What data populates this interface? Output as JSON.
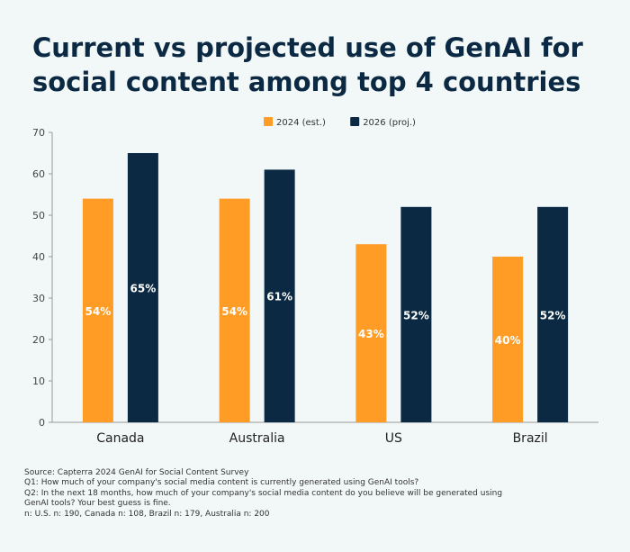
{
  "title": "Current vs projected use of GenAI for social content among top 4 countries",
  "chart_data": {
    "type": "bar",
    "categories": [
      "Canada",
      "Australia",
      "US",
      "Brazil"
    ],
    "series": [
      {
        "name": "2024 (est.)",
        "values": [
          54,
          54,
          43,
          40
        ],
        "labels": [
          "54%",
          "54%",
          "43%",
          "40%"
        ],
        "color": "#ff9c26"
      },
      {
        "name": "2026 (proj.)",
        "values": [
          65,
          61,
          52,
          52
        ],
        "labels": [
          "65%",
          "61%",
          "52%",
          "52%"
        ],
        "color": "#0b2942"
      }
    ],
    "ylim": [
      0,
      70
    ],
    "yticks": [
      0,
      10,
      20,
      30,
      40,
      50,
      60,
      70
    ],
    "legend": "top-right",
    "grid": false
  },
  "notes": [
    "Source: Capterra 2024 GenAI for Social Content Survey",
    "Q1: How much of your company's social media content is currently generated using GenAI tools?",
    "Q2: In the next 18 months, how much of your company's social media content do you believe will be generated using",
    "GenAI tools? Your best guess is fine.",
    "n: U.S. n: 190, Canada n: 108, Brazil n: 179, Australia n: 200"
  ]
}
